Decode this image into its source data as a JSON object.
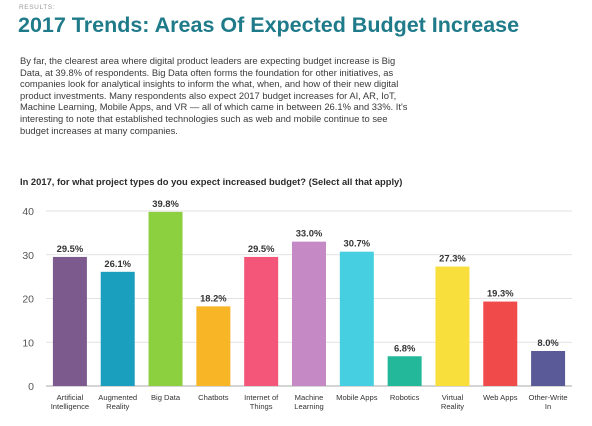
{
  "header": {
    "section_label": "RESULTS:",
    "title": "2017 Trends: Areas Of Expected Budget Increase"
  },
  "body_text": "By far, the clearest area where digital product leaders are expecting budget increase is Big Data, at 39.8% of respondents. Big Data often forms the foundation for other initiatives, as companies look for analytical insights to inform the what, when, and how of their new digital product investments. Many respondents also expect 2017 budget increases for AI, AR, IoT, Machine Learning, Mobile Apps, and VR — all of which came in between 26.1% and 33%. It's interesting to note that established technologies such as web and mobile continue to see budget increases at many companies.",
  "chart_data": {
    "type": "bar",
    "title": "In 2017, for what project types do you expect increased budget? (Select all that apply)",
    "xlabel": "",
    "ylabel": "",
    "ylim": [
      0,
      40
    ],
    "yticks": [
      0,
      10,
      20,
      30,
      40
    ],
    "grid": true,
    "categories": [
      [
        "Artificial",
        "Intelligence"
      ],
      [
        "Augmented",
        "Reality"
      ],
      [
        "Big Data"
      ],
      [
        "Chatbots"
      ],
      [
        "Internet of",
        "Things"
      ],
      [
        "Machine",
        "Learning"
      ],
      [
        "Mobile Apps"
      ],
      [
        "Robotics"
      ],
      [
        "Virtual",
        "Reality"
      ],
      [
        "Web Apps"
      ],
      [
        "Other-Write",
        "In"
      ]
    ],
    "values": [
      29.5,
      26.1,
      39.8,
      18.2,
      29.5,
      33.0,
      30.7,
      6.8,
      27.3,
      19.3,
      8.0
    ],
    "value_labels": [
      "29.5%",
      "26.1%",
      "39.8%",
      "18.2%",
      "29.5%",
      "33.0%",
      "30.7%",
      "6.8%",
      "27.3%",
      "19.3%",
      "8.0%"
    ],
    "colors": [
      "#7c5a8e",
      "#1a9fbf",
      "#8ccf3f",
      "#f8b525",
      "#f4567a",
      "#c58ac6",
      "#45cfe0",
      "#24b89a",
      "#f8df3c",
      "#f14a4a",
      "#5a5a98"
    ]
  }
}
